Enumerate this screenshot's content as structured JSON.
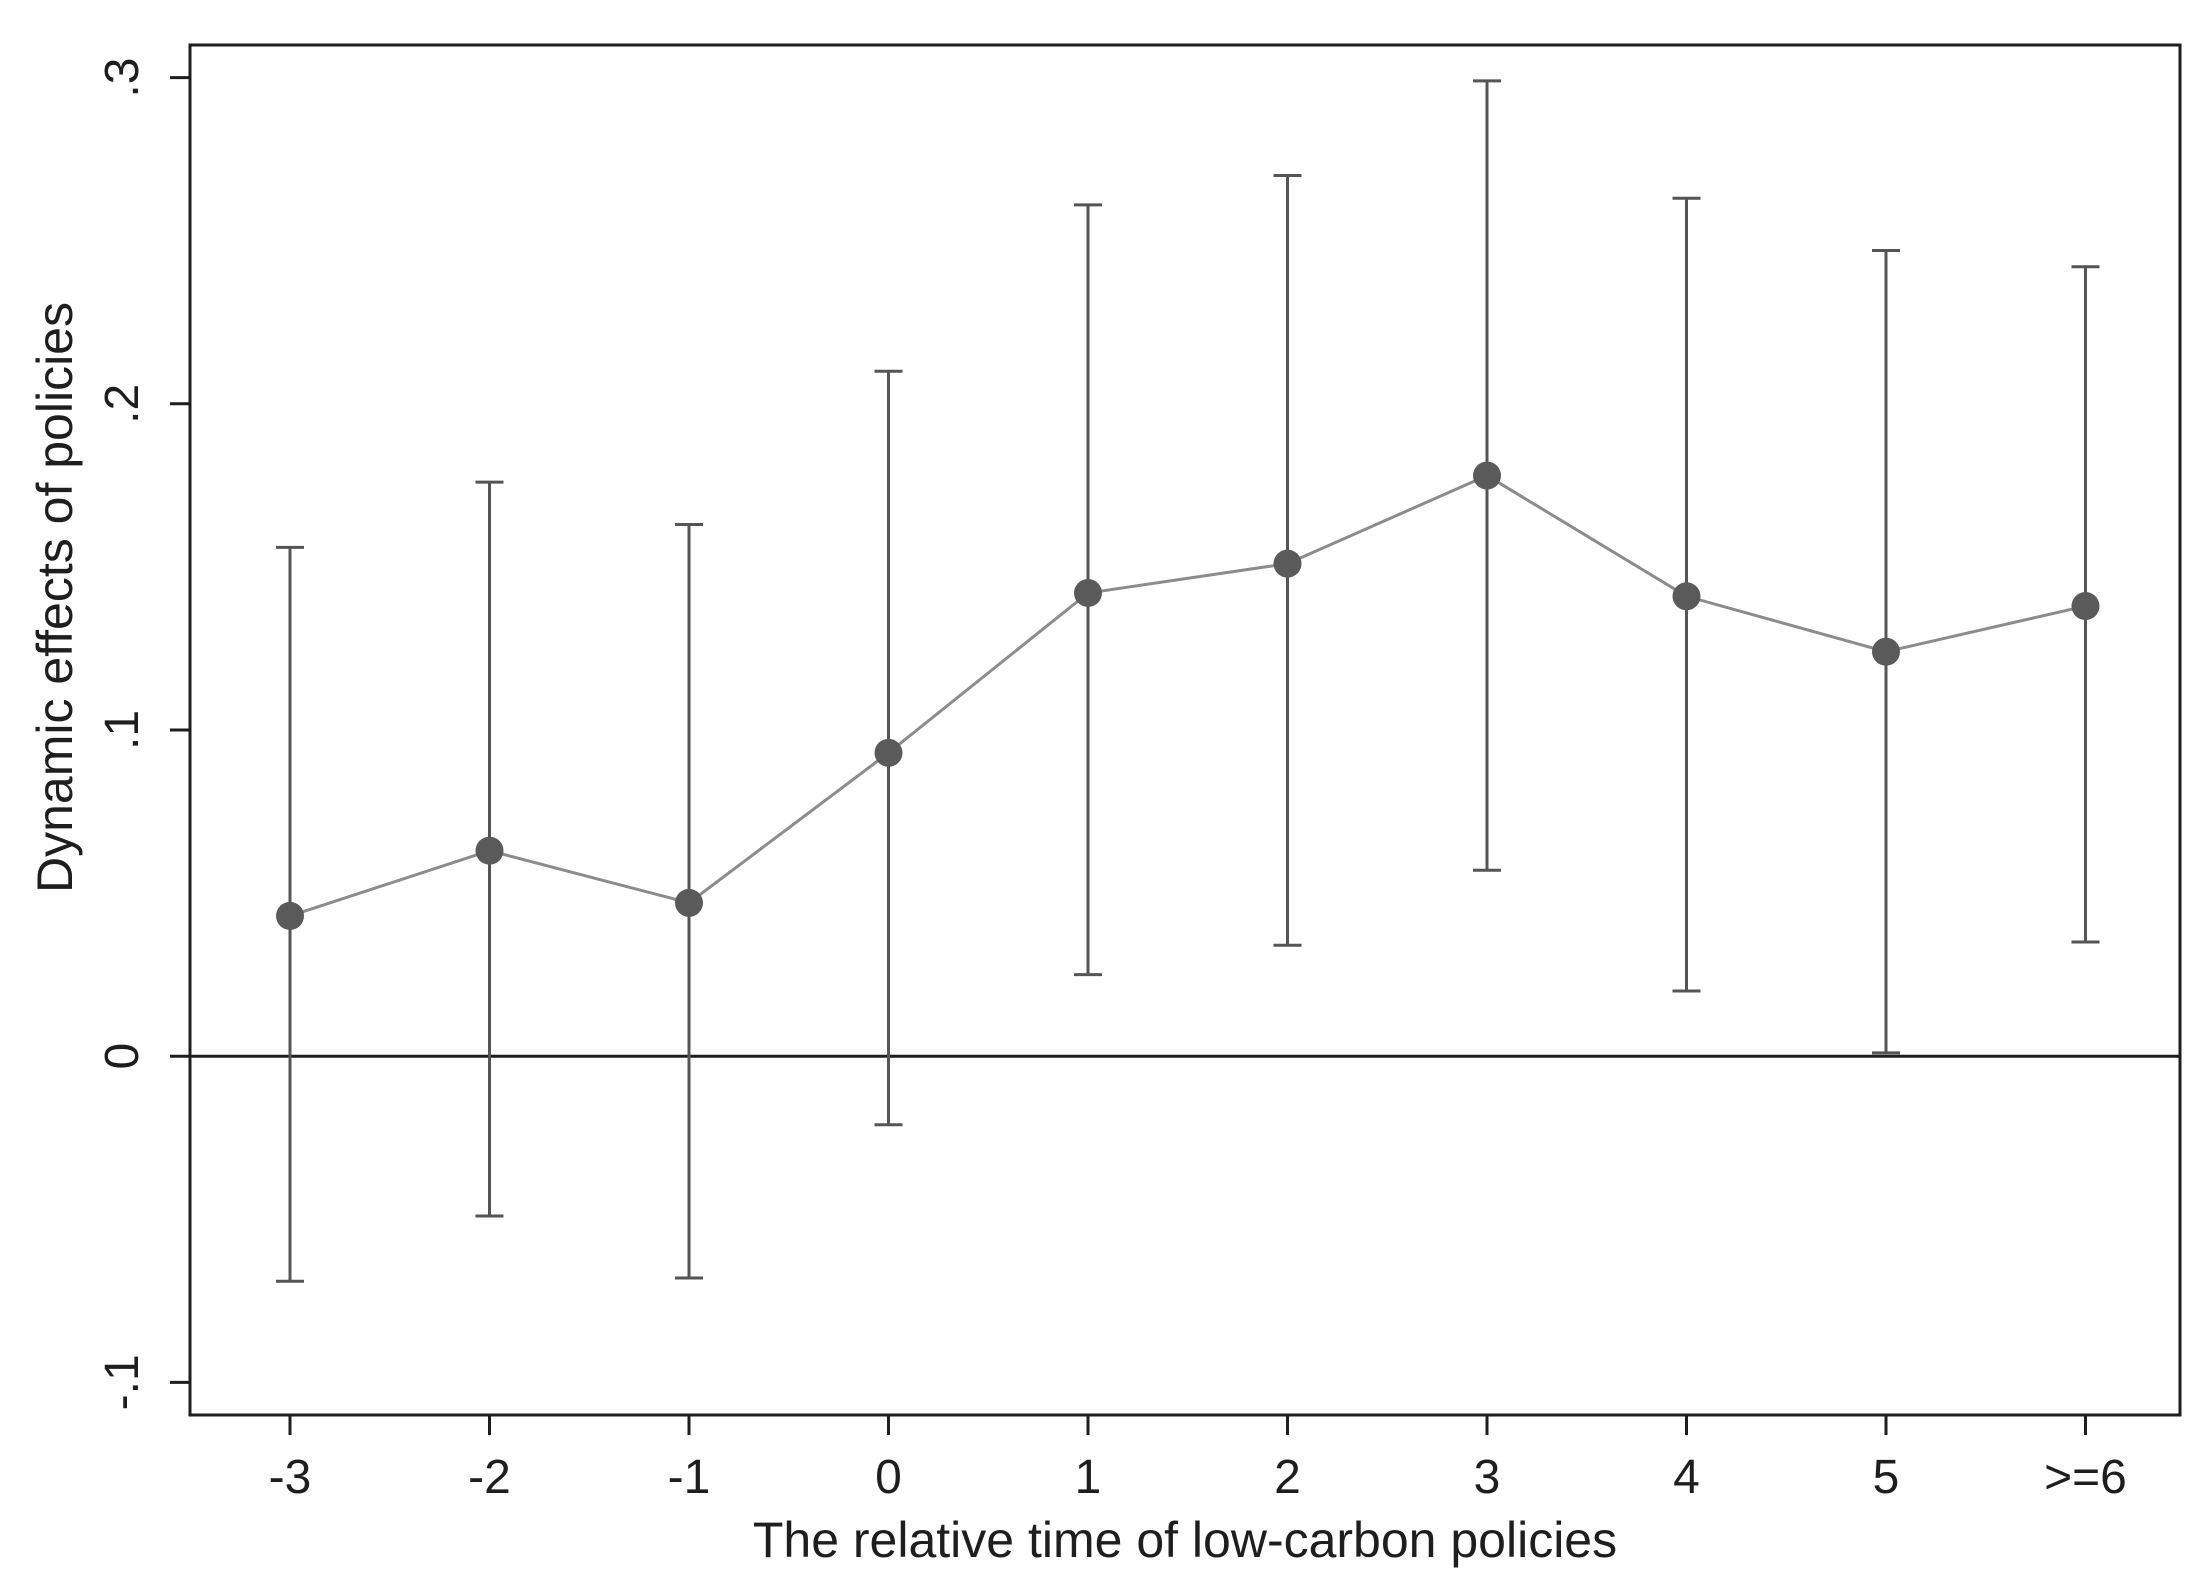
{
  "chart_data": {
    "type": "scatter",
    "title": "",
    "xlabel": "The relative time of low-carbon policies",
    "ylabel": "Dynamic effects of policies",
    "categories": [
      "-3",
      "-2",
      "-1",
      "0",
      "1",
      "2",
      "3",
      "4",
      "5",
      ">=6"
    ],
    "series": [
      {
        "values": [
          0.043,
          0.063,
          0.047,
          0.093,
          0.142,
          0.151,
          0.178,
          0.141,
          0.124,
          0.138
        ],
        "ci_upper": [
          0.156,
          0.176,
          0.163,
          0.21,
          0.261,
          0.27,
          0.299,
          0.263,
          0.247,
          0.242
        ],
        "ci_lower": [
          -0.069,
          -0.049,
          -0.068,
          -0.021,
          0.025,
          0.034,
          0.057,
          0.02,
          0.001,
          0.035
        ]
      }
    ],
    "ylim": [
      -0.11,
      0.31
    ],
    "yticks": [
      -0.1,
      0,
      0.1,
      0.2,
      0.3
    ],
    "ytick_labels": [
      "-.1",
      "0",
      ".1",
      ".2",
      ".3"
    ],
    "reference_line_y": 0,
    "grid": false,
    "legend": "none",
    "colors": {
      "line": "#8c8c8c",
      "marker": "#5a5a5a",
      "errorbar": "#555555",
      "axis": "#1e1e1e",
      "reference_line": "#1e1e1e"
    }
  }
}
